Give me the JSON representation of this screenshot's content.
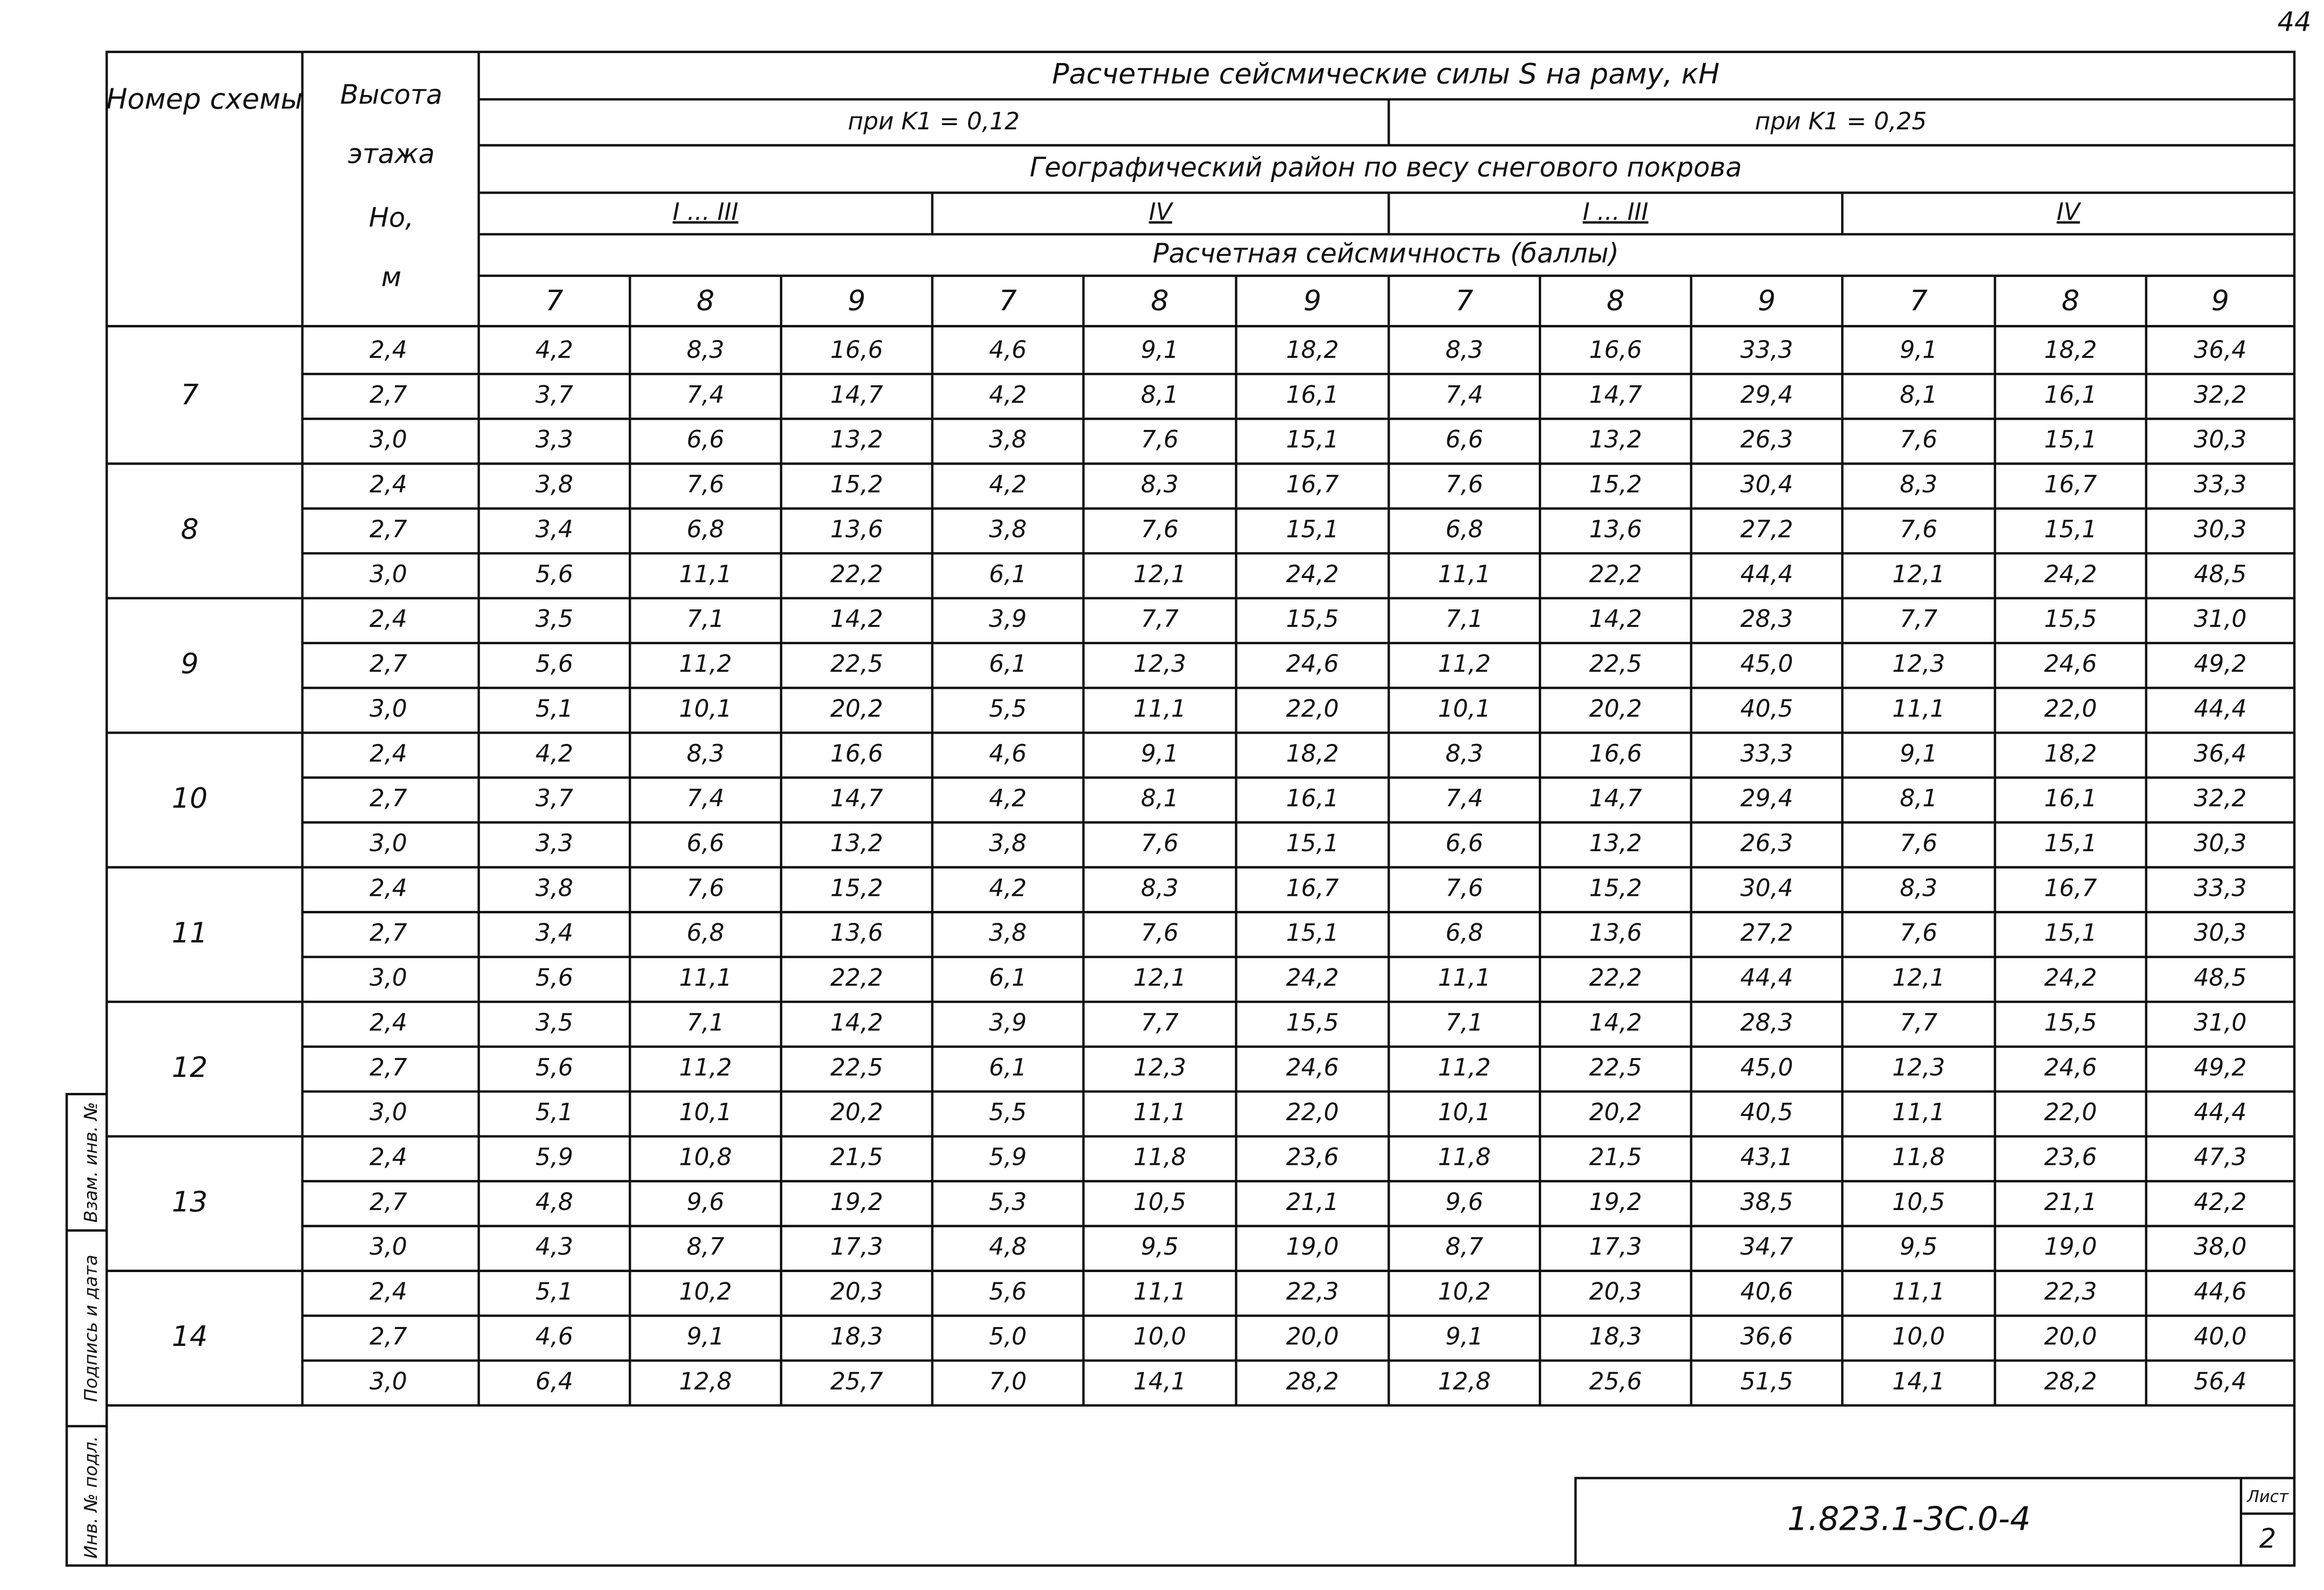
{
  "page_number": "44",
  "header": {
    "scheme": "Номер схемы",
    "height": [
      "Высота",
      "этажа",
      "Но,",
      "м"
    ],
    "title": "Расчетные сейсмические силы S на раму, кН",
    "k1": "при K1 = 0,12",
    "k2": "при K1 = 0,25",
    "region": "Географический район по весу снегового покрова",
    "regions": [
      "I ... III",
      "IV",
      "I ... III",
      "IV"
    ],
    "seismicity": "Расчетная сейсмичность (баллы)",
    "grades": [
      "7",
      "8",
      "9",
      "7",
      "8",
      "9",
      "7",
      "8",
      "9",
      "7",
      "8",
      "9"
    ]
  },
  "groups": [
    {
      "scheme": "7",
      "rows": [
        {
          "height": "2,4",
          "values": [
            "4,2",
            "8,3",
            "16,6",
            "4,6",
            "9,1",
            "18,2",
            "8,3",
            "16,6",
            "33,3",
            "9,1",
            "18,2",
            "36,4"
          ]
        },
        {
          "height": "2,7",
          "values": [
            "3,7",
            "7,4",
            "14,7",
            "4,2",
            "8,1",
            "16,1",
            "7,4",
            "14,7",
            "29,4",
            "8,1",
            "16,1",
            "32,2"
          ]
        },
        {
          "height": "3,0",
          "values": [
            "3,3",
            "6,6",
            "13,2",
            "3,8",
            "7,6",
            "15,1",
            "6,6",
            "13,2",
            "26,3",
            "7,6",
            "15,1",
            "30,3"
          ]
        }
      ]
    },
    {
      "scheme": "8",
      "rows": [
        {
          "height": "2,4",
          "values": [
            "3,8",
            "7,6",
            "15,2",
            "4,2",
            "8,3",
            "16,7",
            "7,6",
            "15,2",
            "30,4",
            "8,3",
            "16,7",
            "33,3"
          ]
        },
        {
          "height": "2,7",
          "values": [
            "3,4",
            "6,8",
            "13,6",
            "3,8",
            "7,6",
            "15,1",
            "6,8",
            "13,6",
            "27,2",
            "7,6",
            "15,1",
            "30,3"
          ]
        },
        {
          "height": "3,0",
          "values": [
            "5,6",
            "11,1",
            "22,2",
            "6,1",
            "12,1",
            "24,2",
            "11,1",
            "22,2",
            "44,4",
            "12,1",
            "24,2",
            "48,5"
          ]
        }
      ]
    },
    {
      "scheme": "9",
      "rows": [
        {
          "height": "2,4",
          "values": [
            "3,5",
            "7,1",
            "14,2",
            "3,9",
            "7,7",
            "15,5",
            "7,1",
            "14,2",
            "28,3",
            "7,7",
            "15,5",
            "31,0"
          ]
        },
        {
          "height": "2,7",
          "values": [
            "5,6",
            "11,2",
            "22,5",
            "6,1",
            "12,3",
            "24,6",
            "11,2",
            "22,5",
            "45,0",
            "12,3",
            "24,6",
            "49,2"
          ]
        },
        {
          "height": "3,0",
          "values": [
            "5,1",
            "10,1",
            "20,2",
            "5,5",
            "11,1",
            "22,0",
            "10,1",
            "20,2",
            "40,5",
            "11,1",
            "22,0",
            "44,4"
          ]
        }
      ]
    },
    {
      "scheme": "10",
      "rows": [
        {
          "height": "2,4",
          "values": [
            "4,2",
            "8,3",
            "16,6",
            "4,6",
            "9,1",
            "18,2",
            "8,3",
            "16,6",
            "33,3",
            "9,1",
            "18,2",
            "36,4"
          ]
        },
        {
          "height": "2,7",
          "values": [
            "3,7",
            "7,4",
            "14,7",
            "4,2",
            "8,1",
            "16,1",
            "7,4",
            "14,7",
            "29,4",
            "8,1",
            "16,1",
            "32,2"
          ]
        },
        {
          "height": "3,0",
          "values": [
            "3,3",
            "6,6",
            "13,2",
            "3,8",
            "7,6",
            "15,1",
            "6,6",
            "13,2",
            "26,3",
            "7,6",
            "15,1",
            "30,3"
          ]
        }
      ]
    },
    {
      "scheme": "11",
      "rows": [
        {
          "height": "2,4",
          "values": [
            "3,8",
            "7,6",
            "15,2",
            "4,2",
            "8,3",
            "16,7",
            "7,6",
            "15,2",
            "30,4",
            "8,3",
            "16,7",
            "33,3"
          ]
        },
        {
          "height": "2,7",
          "values": [
            "3,4",
            "6,8",
            "13,6",
            "3,8",
            "7,6",
            "15,1",
            "6,8",
            "13,6",
            "27,2",
            "7,6",
            "15,1",
            "30,3"
          ]
        },
        {
          "height": "3,0",
          "values": [
            "5,6",
            "11,1",
            "22,2",
            "6,1",
            "12,1",
            "24,2",
            "11,1",
            "22,2",
            "44,4",
            "12,1",
            "24,2",
            "48,5"
          ]
        }
      ]
    },
    {
      "scheme": "12",
      "rows": [
        {
          "height": "2,4",
          "values": [
            "3,5",
            "7,1",
            "14,2",
            "3,9",
            "7,7",
            "15,5",
            "7,1",
            "14,2",
            "28,3",
            "7,7",
            "15,5",
            "31,0"
          ]
        },
        {
          "height": "2,7",
          "values": [
            "5,6",
            "11,2",
            "22,5",
            "6,1",
            "12,3",
            "24,6",
            "11,2",
            "22,5",
            "45,0",
            "12,3",
            "24,6",
            "49,2"
          ]
        },
        {
          "height": "3,0",
          "values": [
            "5,1",
            "10,1",
            "20,2",
            "5,5",
            "11,1",
            "22,0",
            "10,1",
            "20,2",
            "40,5",
            "11,1",
            "22,0",
            "44,4"
          ]
        }
      ]
    },
    {
      "scheme": "13",
      "rows": [
        {
          "height": "2,4",
          "values": [
            "5,9",
            "10,8",
            "21,5",
            "5,9",
            "11,8",
            "23,6",
            "11,8",
            "21,5",
            "43,1",
            "11,8",
            "23,6",
            "47,3"
          ]
        },
        {
          "height": "2,7",
          "values": [
            "4,8",
            "9,6",
            "19,2",
            "5,3",
            "10,5",
            "21,1",
            "9,6",
            "19,2",
            "38,5",
            "10,5",
            "21,1",
            "42,2"
          ]
        },
        {
          "height": "3,0",
          "values": [
            "4,3",
            "8,7",
            "17,3",
            "4,8",
            "9,5",
            "19,0",
            "8,7",
            "17,3",
            "34,7",
            "9,5",
            "19,0",
            "38,0"
          ]
        }
      ]
    },
    {
      "scheme": "14",
      "rows": [
        {
          "height": "2,4",
          "values": [
            "5,1",
            "10,2",
            "20,3",
            "5,6",
            "11,1",
            "22,3",
            "10,2",
            "20,3",
            "40,6",
            "11,1",
            "22,3",
            "44,6"
          ]
        },
        {
          "height": "2,7",
          "values": [
            "4,6",
            "9,1",
            "18,3",
            "5,0",
            "10,0",
            "20,0",
            "9,1",
            "18,3",
            "36,6",
            "10,0",
            "20,0",
            "40,0"
          ]
        },
        {
          "height": "3,0",
          "values": [
            "6,4",
            "12,8",
            "25,7",
            "7,0",
            "14,1",
            "28,2",
            "12,8",
            "25,6",
            "51,5",
            "14,1",
            "28,2",
            "56,4"
          ]
        }
      ]
    }
  ],
  "stamp": {
    "code": "1.823.1-3С.0-4",
    "sheet_label": "Лист",
    "sheet": "2",
    "side": [
      "Инв. № подл.",
      "Подпись и дата",
      "Взам. инв. №"
    ]
  }
}
